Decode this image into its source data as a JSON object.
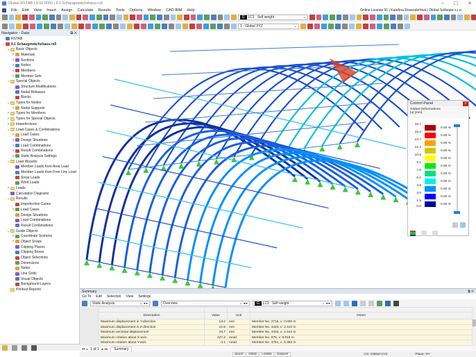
{
  "window": {
    "title": "Dlubal RSTAB | 9.02.0050 | 9.1 Schaugewächshaus.rs9",
    "license": "Online License 91 | Kateřina Rosendorfová | Dlubal Software s.r.o."
  },
  "menu": [
    "File",
    "Edit",
    "View",
    "Insert",
    "Assign",
    "Calculate",
    "Results",
    "Tools",
    "Options",
    "Window",
    "CAD-BIM",
    "Help"
  ],
  "toolbar": {
    "lc_badge": "G",
    "lc": "LC1",
    "lc_name": "Self weight",
    "cs": "1 - Global XYZ"
  },
  "navigator": {
    "title": "Navigator - Data",
    "items": [
      {
        "l": "RSTAB",
        "d": 0,
        "a": "",
        "t": "app"
      },
      {
        "l": "9.1 Schaugewächshaus.rs9",
        "d": 0,
        "a": "v",
        "t": "file",
        "b": true
      },
      {
        "l": "Basic Objects",
        "d": 1,
        "a": "v",
        "t": "folder"
      },
      {
        "l": "Materials",
        "d": 2,
        "a": ">",
        "t": "i"
      },
      {
        "l": "Sections",
        "d": 2,
        "a": ">",
        "t": "i"
      },
      {
        "l": "Nodes",
        "d": 2,
        "a": ">",
        "t": "i"
      },
      {
        "l": "Members",
        "d": 2,
        "a": ">",
        "t": "i"
      },
      {
        "l": "Member Sets",
        "d": 2,
        "a": ">",
        "t": "i"
      },
      {
        "l": "Special Objects",
        "d": 1,
        "a": "v",
        "t": "folder"
      },
      {
        "l": "Structure Modifications",
        "d": 2,
        "a": "",
        "t": "i"
      },
      {
        "l": "Nodal Releases",
        "d": 2,
        "a": "",
        "t": "i"
      },
      {
        "l": "Blocks",
        "d": 2,
        "a": "",
        "t": "i"
      },
      {
        "l": "Types for Nodes",
        "d": 1,
        "a": "v",
        "t": "folder"
      },
      {
        "l": "Nodal Supports",
        "d": 2,
        "a": ">",
        "t": "i"
      },
      {
        "l": "Types for Members",
        "d": 1,
        "a": ">",
        "t": "folder"
      },
      {
        "l": "Types for Special Objects",
        "d": 1,
        "a": ">",
        "t": "folder"
      },
      {
        "l": "Imperfections",
        "d": 1,
        "a": ">",
        "t": "folder"
      },
      {
        "l": "Load Cases & Combinations",
        "d": 1,
        "a": "v",
        "t": "folder"
      },
      {
        "l": "Load Cases",
        "d": 2,
        "a": ">",
        "t": "i"
      },
      {
        "l": "Design Situations",
        "d": 2,
        "a": ">",
        "t": "i"
      },
      {
        "l": "Load Combinations",
        "d": 2,
        "a": ">",
        "t": "i"
      },
      {
        "l": "Result Combinations",
        "d": 2,
        "a": ">",
        "t": "i"
      },
      {
        "l": "Static Analysis Settings",
        "d": 2,
        "a": ">",
        "t": "i"
      },
      {
        "l": "Load Wizards",
        "d": 1,
        "a": "v",
        "t": "folder"
      },
      {
        "l": "Member Loads from Area Load",
        "d": 2,
        "a": "",
        "t": "i"
      },
      {
        "l": "Member Loads from Free Line Load",
        "d": 2,
        "a": "",
        "t": "i"
      },
      {
        "l": "Snow Loads",
        "d": 2,
        "a": "",
        "t": "i"
      },
      {
        "l": "Wind Loads",
        "d": 2,
        "a": "",
        "t": "i"
      },
      {
        "l": "Loads",
        "d": 1,
        "a": ">",
        "t": "folder"
      },
      {
        "l": "Calculation Diagrams",
        "d": 1,
        "a": "",
        "t": "i"
      },
      {
        "l": "Results",
        "d": 1,
        "a": "v",
        "t": "folder"
      },
      {
        "l": "Imperfection Cases",
        "d": 2,
        "a": "",
        "t": "i"
      },
      {
        "l": "Load Cases",
        "d": 2,
        "a": ">",
        "t": "i"
      },
      {
        "l": "Design Situations",
        "d": 2,
        "a": "",
        "t": "i"
      },
      {
        "l": "Load Combinations",
        "d": 2,
        "a": "",
        "t": "i"
      },
      {
        "l": "Result Combinations",
        "d": 2,
        "a": "",
        "t": "i"
      },
      {
        "l": "Guide Objects",
        "d": 1,
        "a": "v",
        "t": "folder"
      },
      {
        "l": "Coordinate Systems",
        "d": 2,
        "a": ">",
        "t": "i"
      },
      {
        "l": "Object Snaps",
        "d": 2,
        "a": ">",
        "t": "i"
      },
      {
        "l": "Clipping Planes",
        "d": 2,
        "a": "",
        "t": "i"
      },
      {
        "l": "Clipping Boxes",
        "d": 2,
        "a": "",
        "t": "i"
      },
      {
        "l": "Object Selections",
        "d": 2,
        "a": "",
        "t": "i"
      },
      {
        "l": "Dimensions",
        "d": 2,
        "a": "",
        "t": "i"
      },
      {
        "l": "Notes",
        "d": 2,
        "a": "",
        "t": "i"
      },
      {
        "l": "Line Grids",
        "d": 2,
        "a": "",
        "t": "i"
      },
      {
        "l": "Visual Objects",
        "d": 2,
        "a": "",
        "t": "i"
      },
      {
        "l": "Background Layers",
        "d": 2,
        "a": "",
        "t": "i"
      },
      {
        "l": "Printout Reports",
        "d": 1,
        "a": "",
        "t": "folder"
      }
    ]
  },
  "control_panel": {
    "title": "Control Panel",
    "heading": "Global Deformations",
    "unit": "|u| [mm]",
    "legend": [
      {
        "v": "16.7",
        "c": "#b00000",
        "p": "0.00 %"
      },
      {
        "v": "15.2",
        "c": "#ff0000",
        "p": "0.00 %"
      },
      {
        "v": "13.7",
        "c": "#ffa000",
        "p": "0.00 %"
      },
      {
        "v": "12.2",
        "c": "#d2c800",
        "p": "0.00 %"
      },
      {
        "v": "10.6",
        "c": "#ffff00",
        "p": "0.00 %"
      },
      {
        "v": "9.1",
        "c": "#00ee00",
        "p": "0.00 %"
      },
      {
        "v": "7.6",
        "c": "#00e080",
        "p": "0.00 %"
      },
      {
        "v": "6.1",
        "c": "#00f0f0",
        "p": "0.00 %"
      },
      {
        "v": "4.6",
        "c": "#0090ff",
        "p": "0.00 %"
      },
      {
        "v": "3.0",
        "c": "#0000ff",
        "p": "0.00 %"
      },
      {
        "v": "1.5",
        "c": "#0000a0",
        "p": "0.00 %"
      }
    ],
    "min": "0.0"
  },
  "summary": {
    "title": "Summary",
    "menu": [
      "Go To",
      "Edit",
      "Selection",
      "View",
      "Settings"
    ],
    "analysis": "Static Analysis",
    "view": "Overview",
    "lc_badge": "G",
    "lc": "LC1",
    "lc_name": "Self weight",
    "columns": [
      "Description",
      "Value",
      "Unit",
      "Notes"
    ],
    "rows": [
      [
        "Maximum displacement in Y-direction",
        "13.2",
        "mm",
        "Member No. 2715, x: 0.000 m"
      ],
      [
        "Maximum displacement in Z-direction",
        "12.8",
        "mm",
        "Member No. 4433, x: 2.442 m"
      ],
      [
        "Maximum vectorial displacement",
        "16.7",
        "mm",
        "Member No. 4433, x: 2.442 m"
      ],
      [
        "Maximum rotation about X-axis",
        "427.2",
        "mrad",
        "Member No. 978, x: 0.015 m"
      ],
      [
        "Maximum rotation about Y-axis",
        "-4.1",
        "mrad",
        "Member No. 4761, x: 0.360 m"
      ]
    ],
    "pager": "1 of 1",
    "tab": "Summary"
  },
  "status": {
    "buttons": [
      "SNAP",
      "GRID",
      "LGRID",
      "OSNAP"
    ],
    "cs": "CS: Global XYZ",
    "plane": "Plane: XY"
  }
}
